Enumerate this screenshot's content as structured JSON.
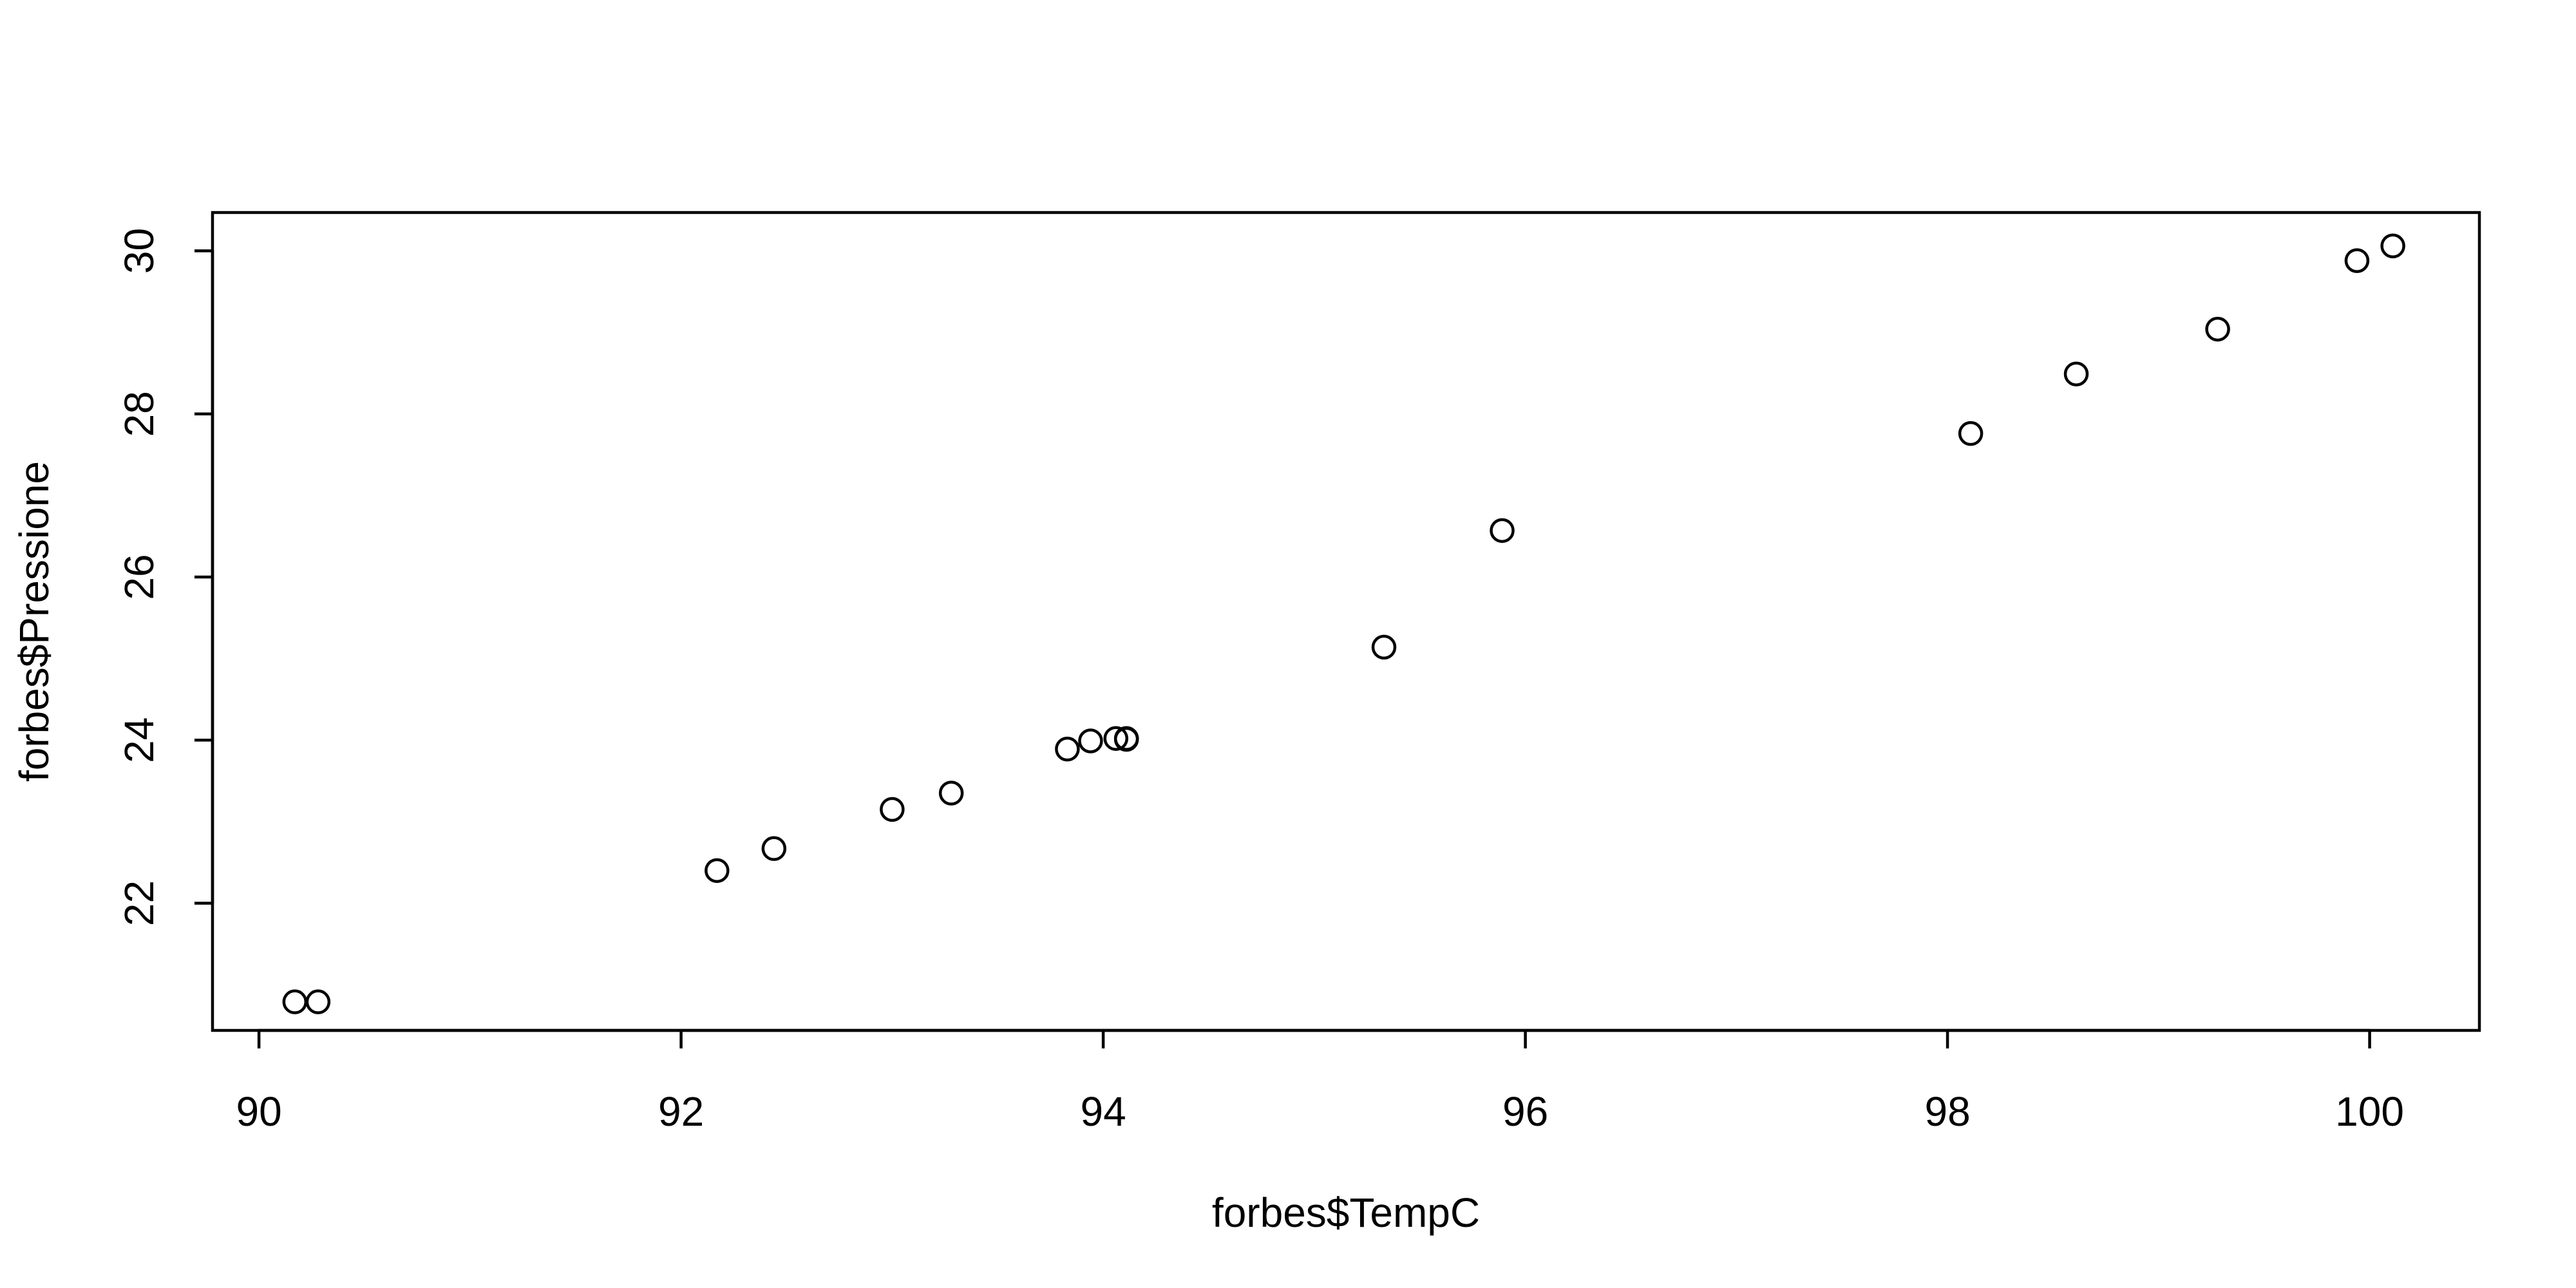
{
  "chart_data": {
    "type": "scatter",
    "title": "",
    "xlabel": "forbes$TempC",
    "ylabel": "forbes$Pressione",
    "xlim": [
      89.78,
      100.52
    ],
    "ylim": [
      20.44,
      30.47
    ],
    "x_ticks": [
      90,
      92,
      94,
      96,
      98,
      100
    ],
    "y_ticks": [
      22,
      24,
      26,
      28,
      30
    ],
    "grid": false,
    "legend": "none",
    "point_style": "open-circle",
    "points": [
      {
        "x": 90.17,
        "y": 20.79
      },
      {
        "x": 90.28,
        "y": 20.79
      },
      {
        "x": 92.17,
        "y": 22.4
      },
      {
        "x": 92.44,
        "y": 22.67
      },
      {
        "x": 93.0,
        "y": 23.15
      },
      {
        "x": 93.28,
        "y": 23.35
      },
      {
        "x": 93.83,
        "y": 23.89
      },
      {
        "x": 93.94,
        "y": 23.99
      },
      {
        "x": 94.06,
        "y": 24.02
      },
      {
        "x": 94.11,
        "y": 24.01
      },
      {
        "x": 94.11,
        "y": 24.02
      },
      {
        "x": 95.33,
        "y": 25.14
      },
      {
        "x": 95.89,
        "y": 26.57
      },
      {
        "x": 98.61,
        "y": 28.49
      },
      {
        "x": 98.11,
        "y": 27.76
      },
      {
        "x": 99.28,
        "y": 29.04
      },
      {
        "x": 99.94,
        "y": 29.88
      },
      {
        "x": 100.11,
        "y": 30.06
      }
    ]
  }
}
